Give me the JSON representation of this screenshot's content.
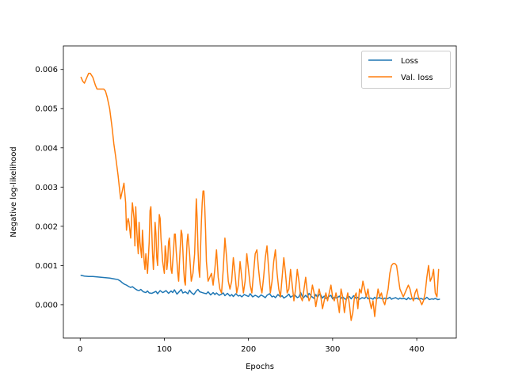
{
  "chart_data": {
    "type": "line",
    "title": "",
    "xlabel": "Epochs",
    "ylabel": "Negative log-likelihood",
    "xlim": [
      -20,
      447
    ],
    "ylim": [
      -0.00085,
      0.0066
    ],
    "xticks": [
      0,
      100,
      200,
      300,
      400
    ],
    "yticks": [
      0.0,
      0.001,
      0.002,
      0.003,
      0.004,
      0.005,
      0.006
    ],
    "ytick_labels": [
      "0.000",
      "0.001",
      "0.002",
      "0.003",
      "0.004",
      "0.005",
      "0.006"
    ],
    "grid": false,
    "legend_position": "top-right",
    "series": [
      {
        "name": "Loss",
        "color": "#1f77b4",
        "x": [
          1,
          5,
          10,
          15,
          20,
          25,
          30,
          35,
          40,
          45,
          48,
          50,
          52,
          55,
          58,
          60,
          62,
          65,
          68,
          70,
          72,
          75,
          78,
          80,
          82,
          85,
          88,
          90,
          92,
          95,
          98,
          100,
          102,
          105,
          108,
          110,
          112,
          115,
          118,
          120,
          122,
          125,
          128,
          130,
          132,
          135,
          138,
          140,
          142,
          145,
          148,
          150,
          152,
          155,
          158,
          160,
          162,
          165,
          168,
          170,
          172,
          175,
          178,
          180,
          182,
          185,
          188,
          190,
          192,
          195,
          198,
          200,
          202,
          205,
          208,
          210,
          212,
          215,
          218,
          220,
          222,
          225,
          228,
          230,
          232,
          235,
          238,
          240,
          242,
          245,
          248,
          250,
          252,
          255,
          258,
          260,
          262,
          265,
          268,
          270,
          272,
          275,
          278,
          280,
          282,
          285,
          288,
          290,
          292,
          295,
          298,
          300,
          302,
          305,
          308,
          310,
          312,
          315,
          318,
          320,
          322,
          325,
          328,
          330,
          332,
          335,
          338,
          340,
          342,
          345,
          348,
          350,
          352,
          355,
          358,
          360,
          362,
          365,
          368,
          370,
          372,
          375,
          378,
          380,
          382,
          385,
          388,
          390,
          392,
          395,
          398,
          400,
          402,
          405,
          408,
          410,
          412,
          415,
          418,
          420,
          422,
          425,
          427
        ],
        "y": [
          0.00075,
          0.00073,
          0.00072,
          0.00072,
          0.00071,
          0.0007,
          0.00069,
          0.00068,
          0.00066,
          0.00064,
          0.0006,
          0.00056,
          0.00053,
          0.0005,
          0.00046,
          0.00044,
          0.00046,
          0.00041,
          0.00037,
          0.00036,
          0.00039,
          0.00033,
          0.00031,
          0.00035,
          0.0003,
          0.00029,
          0.00032,
          0.00034,
          0.00028,
          0.00036,
          0.00031,
          0.00033,
          0.00036,
          0.00029,
          0.00035,
          0.00031,
          0.00038,
          0.00027,
          0.00034,
          0.00039,
          0.0003,
          0.00033,
          0.00028,
          0.00037,
          0.00031,
          0.00026,
          0.00035,
          0.00039,
          0.00033,
          0.00031,
          0.00029,
          0.00028,
          0.00033,
          0.00025,
          0.00031,
          0.00026,
          0.0003,
          0.00024,
          0.00027,
          0.0003,
          0.00023,
          0.00029,
          0.00022,
          0.00026,
          0.00021,
          0.00028,
          0.00022,
          0.00024,
          0.0002,
          0.00026,
          0.00023,
          0.00021,
          0.00028,
          0.0002,
          0.00024,
          0.00022,
          0.00019,
          0.00025,
          0.00021,
          0.00018,
          0.00024,
          0.00028,
          0.0002,
          0.00022,
          0.00018,
          0.00026,
          0.0002,
          0.00023,
          0.00017,
          0.00021,
          0.00027,
          0.00019,
          0.00022,
          0.00025,
          0.00018,
          0.0002,
          0.00031,
          0.00017,
          0.00024,
          0.00019,
          0.00029,
          0.00021,
          0.00016,
          0.00026,
          0.00019,
          0.00028,
          0.00017,
          0.00022,
          0.00016,
          0.0002,
          0.00024,
          0.00015,
          0.00019,
          0.00017,
          0.00022,
          0.00016,
          0.0002,
          0.00014,
          0.00018,
          0.00021,
          0.00015,
          0.00023,
          0.00016,
          0.00019,
          0.00014,
          0.00018,
          0.00016,
          0.00021,
          0.00015,
          0.00017,
          0.00014,
          0.00019,
          0.00015,
          0.00018,
          0.00016,
          0.00014,
          0.00017,
          0.00015,
          0.00019,
          0.00014,
          0.00016,
          0.00018,
          0.00014,
          0.00017,
          0.00015,
          0.00016,
          0.00013,
          0.00018,
          0.00014,
          0.00016,
          0.00015,
          0.00017,
          0.00014,
          0.00016,
          0.00013,
          0.00015,
          0.00019,
          0.00013,
          0.00015,
          0.00014,
          0.00016,
          0.00013,
          0.00014
        ]
      },
      {
        "name": "Val. loss",
        "color": "#ff7f0e",
        "x": [
          1,
          3,
          5,
          8,
          10,
          12,
          15,
          18,
          20,
          22,
          25,
          28,
          30,
          32,
          35,
          38,
          40,
          42,
          45,
          48,
          50,
          52,
          54,
          55,
          56,
          57,
          58,
          60,
          62,
          64,
          65,
          66,
          67,
          68,
          69,
          70,
          71,
          72,
          73,
          74,
          75,
          76,
          77,
          78,
          80,
          82,
          83,
          84,
          85,
          86,
          87,
          88,
          89,
          90,
          91,
          92,
          93,
          94,
          95,
          96,
          97,
          98,
          100,
          101,
          102,
          103,
          104,
          105,
          106,
          107,
          108,
          109,
          110,
          111,
          112,
          113,
          114,
          115,
          116,
          117,
          118,
          119,
          120,
          121,
          122,
          123,
          124,
          125,
          126,
          127,
          128,
          130,
          132,
          134,
          136,
          137,
          138,
          139,
          140,
          141,
          142,
          143,
          144,
          145,
          146,
          147,
          148,
          149,
          150,
          152,
          154,
          156,
          158,
          160,
          162,
          164,
          166,
          168,
          170,
          172,
          174,
          176,
          178,
          180,
          182,
          184,
          186,
          188,
          190,
          192,
          194,
          196,
          198,
          200,
          202,
          204,
          206,
          208,
          210,
          212,
          214,
          216,
          218,
          220,
          222,
          224,
          226,
          228,
          230,
          232,
          234,
          236,
          238,
          240,
          242,
          244,
          246,
          248,
          250,
          252,
          254,
          256,
          258,
          260,
          262,
          264,
          266,
          268,
          270,
          272,
          274,
          276,
          278,
          280,
          282,
          284,
          286,
          288,
          290,
          292,
          294,
          296,
          298,
          300,
          302,
          304,
          306,
          308,
          310,
          312,
          314,
          316,
          318,
          320,
          322,
          324,
          326,
          328,
          330,
          332,
          334,
          336,
          338,
          340,
          342,
          344,
          346,
          348,
          350,
          352,
          354,
          356,
          358,
          360,
          362,
          364,
          366,
          368,
          370,
          372,
          374,
          376,
          378,
          380,
          382,
          384,
          386,
          388,
          390,
          392,
          394,
          396,
          398,
          400,
          402,
          404,
          406,
          408,
          410,
          412,
          414,
          416,
          418,
          420,
          422,
          424,
          426
        ],
        "y": [
          0.0058,
          0.0057,
          0.00565,
          0.0058,
          0.0059,
          0.0059,
          0.0058,
          0.0056,
          0.0055,
          0.0055,
          0.0055,
          0.0055,
          0.00545,
          0.0053,
          0.005,
          0.0045,
          0.0041,
          0.0038,
          0.0033,
          0.0027,
          0.0029,
          0.0031,
          0.0026,
          0.0019,
          0.0021,
          0.0022,
          0.0021,
          0.0017,
          0.0026,
          0.0022,
          0.0015,
          0.0025,
          0.002,
          0.0016,
          0.0013,
          0.0021,
          0.0016,
          0.0014,
          0.0012,
          0.0019,
          0.0015,
          0.0011,
          0.0009,
          0.0013,
          0.0008,
          0.0016,
          0.0024,
          0.0025,
          0.0019,
          0.0013,
          0.0009,
          0.0014,
          0.0021,
          0.0018,
          0.0012,
          0.001,
          0.0017,
          0.0023,
          0.0022,
          0.0017,
          0.0014,
          0.0011,
          0.0008,
          0.0015,
          0.0013,
          0.0009,
          0.0011,
          0.0016,
          0.0017,
          0.0013,
          0.0009,
          0.0008,
          0.0011,
          0.0014,
          0.0018,
          0.0018,
          0.0014,
          0.0011,
          0.0008,
          0.0006,
          0.0011,
          0.0015,
          0.0019,
          0.0018,
          0.0014,
          0.0009,
          0.0006,
          0.0005,
          0.0011,
          0.0016,
          0.0018,
          0.0013,
          0.0006,
          0.0008,
          0.0013,
          0.002,
          0.0027,
          0.0022,
          0.0014,
          0.0009,
          0.0007,
          0.0014,
          0.0021,
          0.0026,
          0.0029,
          0.0029,
          0.0025,
          0.0019,
          0.0011,
          0.0006,
          0.0007,
          0.0008,
          0.0005,
          0.0009,
          0.0014,
          0.0007,
          0.0004,
          0.0003,
          0.0009,
          0.0017,
          0.0012,
          0.0006,
          0.0004,
          0.0006,
          0.0012,
          0.0008,
          0.0003,
          0.0005,
          0.0011,
          0.0007,
          0.0003,
          0.0006,
          0.0013,
          0.0009,
          0.0005,
          0.0003,
          0.0008,
          0.0013,
          0.0014,
          0.0009,
          0.0005,
          0.0003,
          0.0007,
          0.0012,
          0.0015,
          0.0009,
          0.0003,
          0.0006,
          0.0011,
          0.0014,
          0.0008,
          0.0004,
          0.0002,
          0.0007,
          0.0012,
          0.0008,
          0.0003,
          0.0004,
          0.0009,
          0.0005,
          0.0001,
          0.0004,
          0.0009,
          0.0006,
          0.0002,
          0.0001,
          0.0004,
          0.0007,
          0.0003,
          0.0001,
          0.0002,
          0.0005,
          0.0003,
          -5e-05,
          0.0002,
          0.0004,
          0.0002,
          -0.0001,
          0.0001,
          0.0003,
          0.0001,
          0.0003,
          0.0005,
          0.0002,
          0.0001,
          0.0003,
          0.0001,
          -0.0002,
          0.0004,
          0.0002,
          -0.0002,
          0.0001,
          0.0003,
          0.0,
          -0.0004,
          -0.0002,
          0.0002,
          0.0003,
          -0.0001,
          0.0004,
          0.0003,
          0.0006,
          0.0004,
          0.0002,
          0.0004,
          0.0001,
          -0.0001,
          0.0001,
          -0.0003,
          0.0001,
          0.0004,
          0.0002,
          0.0003,
          0.0001,
          0.0,
          0.0002,
          0.0004,
          0.0008,
          0.001,
          0.00105,
          0.00105,
          0.001,
          0.0007,
          0.0004,
          0.0003,
          0.0002,
          0.0003,
          0.0004,
          0.0005,
          0.0004,
          0.0002,
          0.0001,
          0.0003,
          0.0004,
          0.0002,
          0.0001,
          0.0,
          0.0001,
          0.0003,
          0.0007,
          0.001,
          0.0006,
          0.0007,
          0.0009,
          0.0003,
          0.0002,
          0.0009
        ]
      }
    ]
  }
}
